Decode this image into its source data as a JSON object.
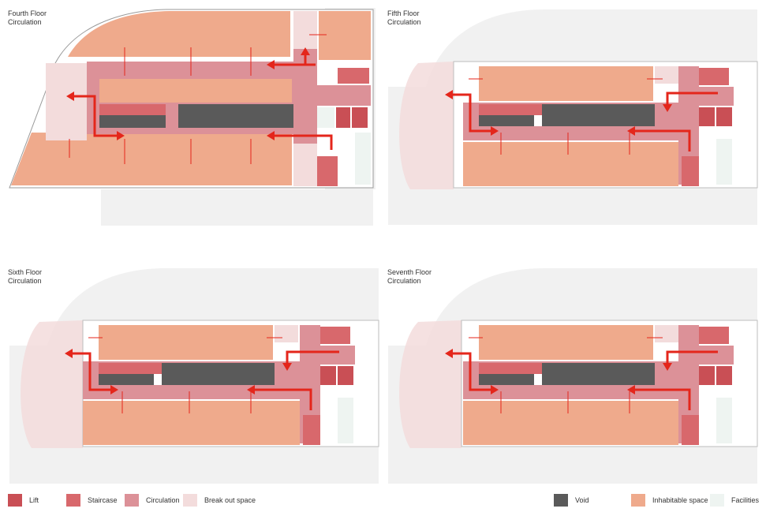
{
  "panels": [
    {
      "title_line1": "Fourth Floor",
      "title_line2": "Circulation"
    },
    {
      "title_line1": "Fifth Floor",
      "title_line2": "Circulation"
    },
    {
      "title_line1": "Sixth Floor",
      "title_line2": "Circulation"
    },
    {
      "title_line1": "Seventh Floor",
      "title_line2": "Circulation"
    }
  ],
  "legend": [
    {
      "label": "Lift",
      "color": "#c94f55"
    },
    {
      "label": "Staircase",
      "color": "#d8686c"
    },
    {
      "label": "Circulation",
      "color": "#dc9198"
    },
    {
      "label": "Break out space",
      "color": "#f3dcdc"
    },
    {
      "label": "Void",
      "color": "#5a5a5a"
    },
    {
      "label": "Inhabitable space",
      "color": "#efaa8c"
    },
    {
      "label": "Facilities",
      "color": "#eef4f1"
    }
  ],
  "colors": {
    "arrow": "#e4261b",
    "ghost": "#f1f1f1",
    "outline": "#9a9a9a"
  }
}
